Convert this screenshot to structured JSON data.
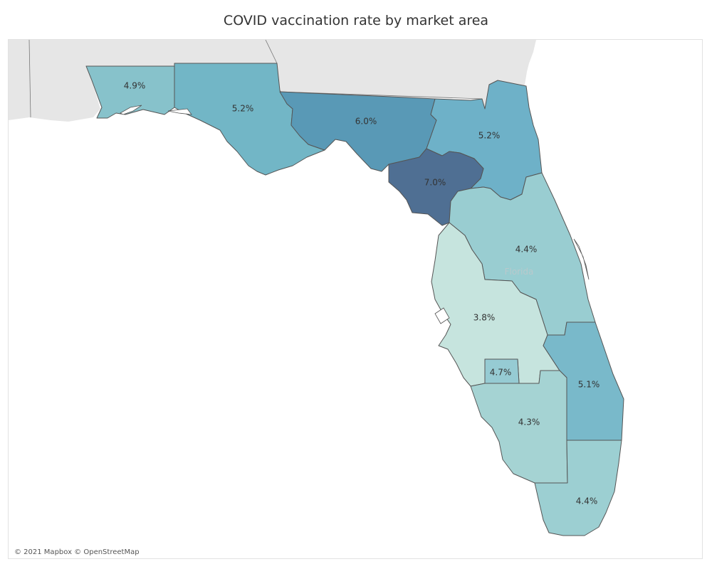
{
  "title": "COVID vaccination rate by market area",
  "attribution": "© 2021 Mapbox © OpenStreetMap",
  "place_label": "Florida",
  "color_scale": [
    "#c6e4de",
    "#6aa8b9",
    "#4f6f93"
  ],
  "regions": [
    {
      "id": "pensacola",
      "label": "4.9%",
      "rate": 4.9,
      "color": "#87c2cb"
    },
    {
      "id": "panama-city",
      "label": "5.2%",
      "rate": 5.2,
      "color": "#72b6c6"
    },
    {
      "id": "tallahassee",
      "label": "6.0%",
      "rate": 6.0,
      "color": "#5999b6"
    },
    {
      "id": "jacksonville",
      "label": "5.2%",
      "rate": 5.2,
      "color": "#6eb1c8"
    },
    {
      "id": "gainesville",
      "label": "7.0%",
      "rate": 7.0,
      "color": "#4f6f93"
    },
    {
      "id": "orlando",
      "label": "4.4%",
      "rate": 4.4,
      "color": "#99cdd1"
    },
    {
      "id": "tampa",
      "label": "3.8%",
      "rate": 3.8,
      "color": "#c6e4de"
    },
    {
      "id": "lakeland",
      "label": "4.7%",
      "rate": 4.7,
      "color": "#96cbd3"
    },
    {
      "id": "west-palm-beach",
      "label": "5.1%",
      "rate": 5.1,
      "color": "#79b9ca"
    },
    {
      "id": "fort-myers",
      "label": "4.3%",
      "rate": 4.3,
      "color": "#a5d3d3"
    },
    {
      "id": "miami",
      "label": "4.4%",
      "rate": 4.4,
      "color": "#9ccfd2"
    }
  ]
}
